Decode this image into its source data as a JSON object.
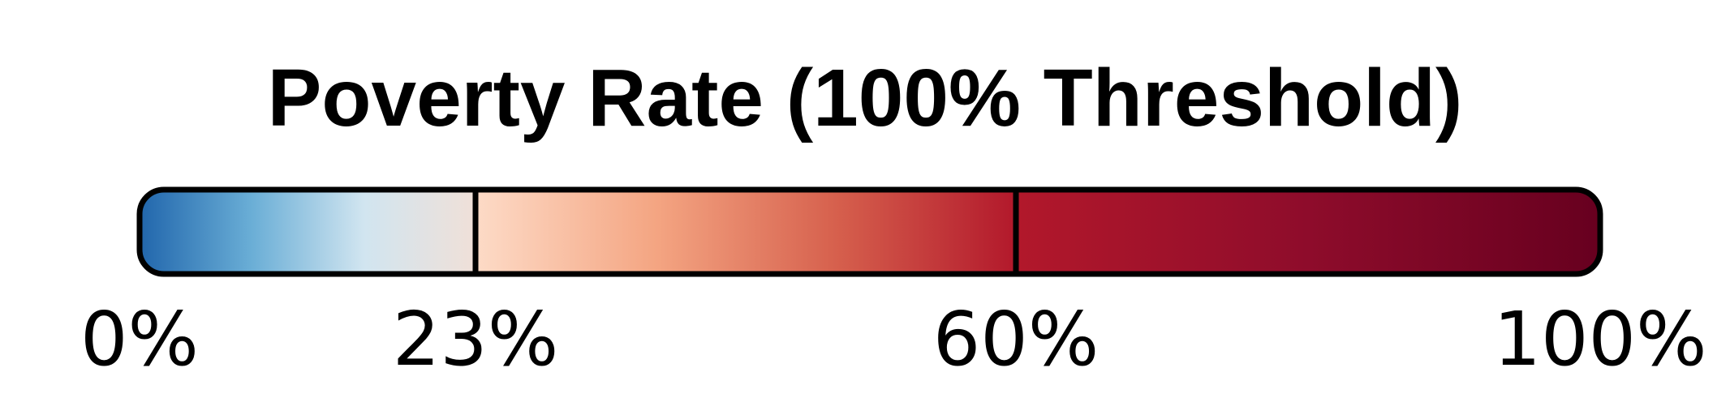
{
  "chart_data": {
    "type": "colorbar",
    "title": "Poverty Rate (100% Threshold)",
    "range": [
      0,
      100
    ],
    "unit": "%",
    "segments": [
      {
        "start": 0,
        "end": 23,
        "colors": [
          "#2166ac",
          "#6aaed6",
          "#d1e5f0",
          "#f0e0d8"
        ]
      },
      {
        "start": 23,
        "end": 60,
        "colors": [
          "#fddbc7",
          "#f4a582",
          "#d6604d",
          "#b2182b"
        ]
      },
      {
        "start": 60,
        "end": 100,
        "colors": [
          "#b2182b",
          "#8e0c2b",
          "#67001f"
        ]
      }
    ],
    "breakpoints": [
      23,
      60
    ],
    "tick_values": [
      0,
      23,
      60,
      100
    ],
    "tick_labels": [
      "0%",
      "23%",
      "60%",
      "100%"
    ],
    "outline_color": "#000000"
  }
}
